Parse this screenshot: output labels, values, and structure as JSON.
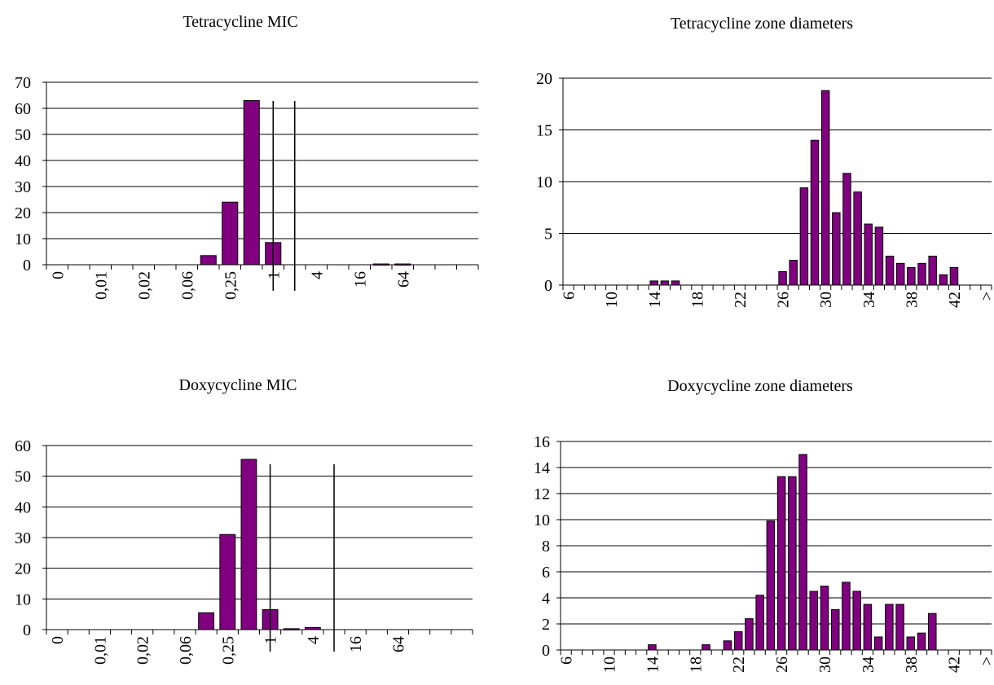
{
  "colors": {
    "bar": "#800080",
    "axis": "#000000",
    "grid": "#000000",
    "background": "#ffffff"
  },
  "chart_data": [
    {
      "id": "tet-mic",
      "type": "bar",
      "title": "Tetracycline MIC",
      "xlabel": "",
      "ylabel": "",
      "ylim": [
        0,
        70
      ],
      "yticks": [
        0,
        10,
        20,
        30,
        40,
        50,
        60,
        70
      ],
      "grid": true,
      "categories": [
        "0",
        "",
        "0,01",
        "",
        "0,02",
        "",
        "0,06",
        "",
        "0,25",
        "",
        "1",
        "",
        "4",
        "",
        "16",
        "",
        "64",
        "",
        "",
        ""
      ],
      "values": [
        0,
        0,
        0,
        0,
        0,
        0,
        0,
        3.5,
        24,
        63,
        8.5,
        0,
        0,
        0,
        0,
        0.3,
        0.3,
        0,
        0,
        0
      ],
      "breakpoints": [
        10.5,
        11.5
      ]
    },
    {
      "id": "tet-zone",
      "type": "bar",
      "title": "Tetracycline zone diameters",
      "xlabel": "",
      "ylabel": "",
      "ylim": [
        0,
        20
      ],
      "yticks": [
        0,
        5,
        10,
        15,
        20
      ],
      "grid": true,
      "categories": [
        "6",
        "",
        "",
        "",
        "10",
        "",
        "",
        "",
        "14",
        "",
        "",
        "",
        "18",
        "",
        "",
        "",
        "22",
        "",
        "",
        "",
        "26",
        "",
        "",
        "",
        "30",
        "",
        "",
        "",
        "34",
        "",
        "",
        "",
        "38",
        "",
        "",
        "",
        "42",
        "",
        "",
        ">"
      ],
      "values": [
        0,
        0,
        0,
        0,
        0,
        0,
        0,
        0,
        0.4,
        0.4,
        0.4,
        0,
        0,
        0,
        0,
        0,
        0,
        0,
        0,
        0,
        1.3,
        2.4,
        9.4,
        14,
        18.8,
        7,
        10.8,
        9,
        5.9,
        5.6,
        2.8,
        2.1,
        1.7,
        2.1,
        2.8,
        1,
        1.7,
        0,
        0,
        0
      ],
      "breakpoints": []
    },
    {
      "id": "dox-mic",
      "type": "bar",
      "title": "Doxycycline MIC",
      "xlabel": "",
      "ylabel": "",
      "ylim": [
        0,
        60
      ],
      "yticks": [
        0,
        10,
        20,
        30,
        40,
        50,
        60
      ],
      "grid": true,
      "categories": [
        "0",
        "",
        "0,01",
        "",
        "0,02",
        "",
        "0,06",
        "",
        "0,25",
        "",
        "1",
        "",
        "4",
        "",
        "16",
        "",
        "64",
        "",
        "",
        ""
      ],
      "values": [
        0,
        0,
        0,
        0,
        0,
        0,
        0,
        5.5,
        31,
        55.5,
        6.5,
        0.3,
        0.7,
        0,
        0,
        0,
        0,
        0,
        0,
        0
      ],
      "breakpoints": [
        10.5,
        13.5
      ]
    },
    {
      "id": "dox-zone",
      "type": "bar",
      "title": "Doxycycline zone diameters",
      "xlabel": "",
      "ylabel": "",
      "ylim": [
        0,
        16
      ],
      "yticks": [
        0,
        2,
        4,
        6,
        8,
        10,
        12,
        14,
        16
      ],
      "grid": true,
      "categories": [
        "6",
        "",
        "",
        "",
        "10",
        "",
        "",
        "",
        "14",
        "",
        "",
        "",
        "18",
        "",
        "",
        "",
        "22",
        "",
        "",
        "",
        "26",
        "",
        "",
        "",
        "30",
        "",
        "",
        "",
        "34",
        "",
        "",
        "",
        "38",
        "",
        "",
        "",
        "42",
        "",
        "",
        ">"
      ],
      "values": [
        0,
        0,
        0,
        0,
        0,
        0,
        0,
        0,
        0.4,
        0,
        0,
        0,
        0,
        0.4,
        0,
        0.7,
        1.4,
        2.4,
        4.2,
        9.9,
        13.3,
        13.3,
        15,
        4.5,
        4.9,
        3.1,
        5.2,
        4.5,
        3.5,
        1,
        3.5,
        3.5,
        1,
        1.3,
        2.8,
        0,
        0,
        0,
        0,
        0
      ],
      "breakpoints": []
    }
  ]
}
